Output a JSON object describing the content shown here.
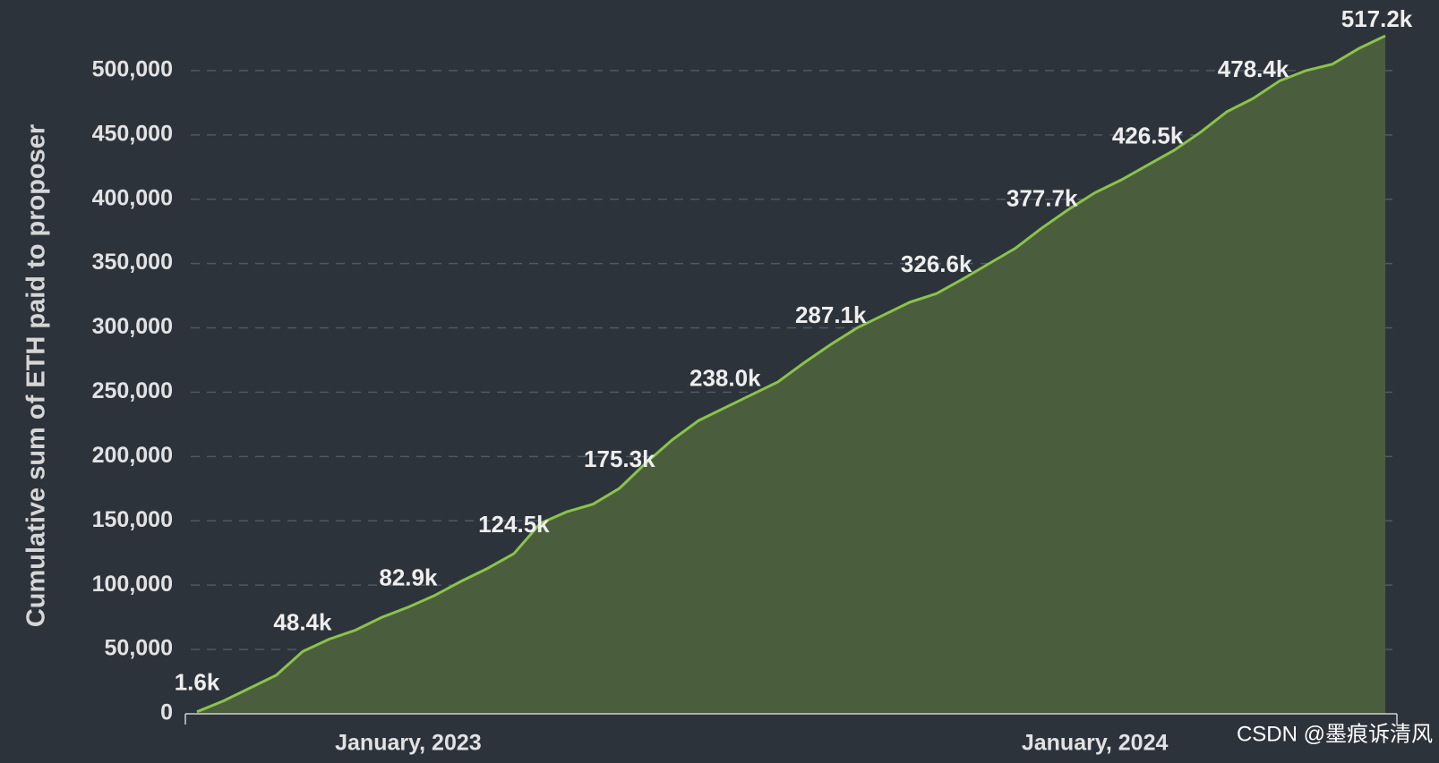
{
  "chart_data": {
    "type": "area",
    "y_label": "Cumulative sum of ETH paid to proposer",
    "watermark": "CSDN @墨痕诉清风",
    "categories": [
      null,
      null,
      null,
      null,
      null,
      null,
      null,
      null,
      "January, 2023",
      null,
      null,
      null,
      null,
      null,
      null,
      null,
      null,
      null,
      null,
      null,
      null,
      null,
      null,
      null,
      null,
      null,
      null,
      null,
      null,
      null,
      null,
      null,
      null,
      null,
      "January, 2024",
      null,
      null,
      null,
      null,
      null,
      null,
      null,
      null,
      null,
      null,
      null
    ],
    "values": [
      1600,
      10000,
      20000,
      30000,
      48400,
      58000,
      65000,
      75000,
      82900,
      92000,
      103000,
      113000,
      124500,
      148000,
      157000,
      163000,
      175300,
      195000,
      213000,
      228000,
      238000,
      248000,
      258000,
      273000,
      287100,
      300000,
      310000,
      320000,
      326600,
      338000,
      350000,
      362000,
      377700,
      392000,
      405000,
      415000,
      426500,
      438000,
      452000,
      468000,
      478400,
      492000,
      500000,
      505000,
      517200,
      527000
    ],
    "value_labels": [
      "1.6k",
      null,
      null,
      null,
      "48.4k",
      null,
      null,
      null,
      "82.9k",
      null,
      null,
      null,
      "124.5k",
      null,
      null,
      null,
      "175.3k",
      null,
      null,
      null,
      "238.0k",
      null,
      null,
      null,
      "287.1k",
      null,
      null,
      null,
      "326.6k",
      null,
      null,
      null,
      "377.7k",
      null,
      null,
      null,
      "426.5k",
      null,
      null,
      null,
      "478.4k",
      null,
      null,
      null,
      "517.2k",
      null
    ],
    "color": "#8bc34a",
    "fill_color": "#4a5e3e",
    "ylim": [
      0,
      550000
    ],
    "yticks": [
      0,
      {
        "value": 50000,
        "label": "50,000"
      },
      {
        "value": 100000,
        "label": "100,000"
      },
      {
        "value": 150000,
        "label": "150,000"
      },
      {
        "value": 200000,
        "label": "200,000"
      },
      {
        "value": 250000,
        "label": "250,000"
      },
      {
        "value": 300000,
        "label": "300,000"
      },
      {
        "value": 350000,
        "label": "350,000"
      },
      {
        "value": 400000,
        "label": "400,000"
      },
      {
        "value": 450000,
        "label": "450,000"
      },
      {
        "value": 500000,
        "label": "500,000"
      }
    ],
    "grid": true
  }
}
